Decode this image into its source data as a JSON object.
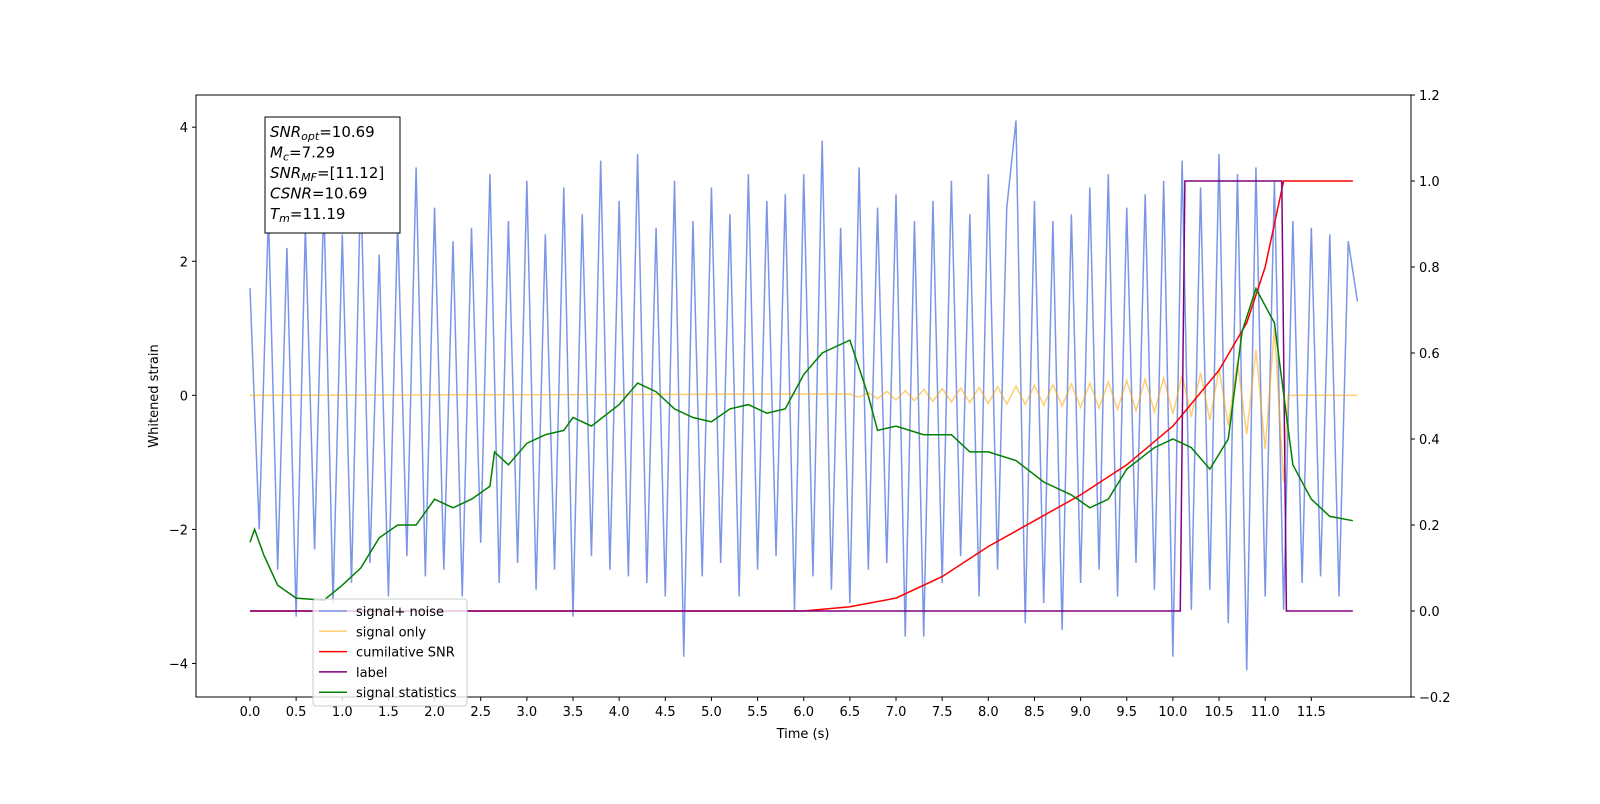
{
  "chart_data": {
    "type": "line",
    "ylabel": "Whitened strain",
    "xlabel": "Time (s)",
    "xlim": [
      -0.585,
      12.58
    ],
    "ylim": [
      -4.5,
      4.48
    ],
    "y2lim": [
      -0.2,
      1.2
    ],
    "xticks": [
      {
        "value": 0,
        "label": "0.0"
      },
      0.5,
      {
        "value": 1,
        "label": "1.0"
      },
      1.5,
      {
        "value": 2,
        "label": "2.0"
      },
      2.5,
      {
        "value": 3,
        "label": "3.0"
      },
      3.5,
      {
        "value": 4,
        "label": "4.0"
      },
      4.5,
      {
        "value": 5,
        "label": "5.0"
      },
      5.5,
      {
        "value": 6,
        "label": "6.0"
      },
      6.5,
      {
        "value": 7,
        "label": "7.0"
      },
      7.5,
      {
        "value": 8,
        "label": "8.0"
      },
      8.5,
      {
        "value": 9,
        "label": "9.0"
      },
      9.5,
      {
        "value": 10,
        "label": "10.0"
      },
      10.5,
      {
        "value": 11,
        "label": "11.0"
      },
      11.5
    ],
    "yticks": [
      {
        "value": -4,
        "label": "−4"
      },
      {
        "value": -2,
        "label": "−2"
      },
      0,
      2,
      4
    ],
    "y2ticks": [
      {
        "value": -0.2,
        "label": "−0.2"
      },
      {
        "value": 0,
        "label": "0.0"
      },
      0.2,
      0.4,
      0.6,
      0.8,
      {
        "value": 1,
        "label": "1.0"
      },
      1.2
    ],
    "annotation": [
      {
        "symbol": "SNR",
        "subscript": "opt",
        "text": "=10.69"
      },
      {
        "symbol": "M",
        "subscript": "c",
        "text": "=7.29"
      },
      {
        "symbol": "SNR",
        "subscript": "MF",
        "text": "=[11.12]"
      },
      {
        "symbol": "CSNR",
        "text": "=10.69"
      },
      {
        "symbol": "T",
        "subscript": "m",
        "text": "=11.19"
      }
    ],
    "legend": "lower center",
    "series": [
      {
        "name": "signal+ noise",
        "color": "#7b96e8",
        "axis": "y",
        "x": [
          0,
          0.1,
          0.2,
          0.3,
          0.4,
          0.5,
          0.6,
          0.7,
          0.8,
          0.9,
          1,
          1.1,
          1.2,
          1.3,
          1.4,
          1.5,
          1.6,
          1.7,
          1.8,
          1.9,
          2,
          2.1,
          2.2,
          2.3,
          2.4,
          2.5,
          2.6,
          2.7,
          2.8,
          2.9,
          3,
          3.1,
          3.2,
          3.3,
          3.4,
          3.5,
          3.6,
          3.7,
          3.8,
          3.9,
          4,
          4.1,
          4.2,
          4.3,
          4.4,
          4.5,
          4.6,
          4.7,
          4.8,
          4.9,
          5,
          5.1,
          5.2,
          5.3,
          5.4,
          5.5,
          5.6,
          5.7,
          5.8,
          5.9,
          6,
          6.1,
          6.2,
          6.3,
          6.4,
          6.5,
          6.6,
          6.7,
          6.8,
          6.9,
          7,
          7.1,
          7.2,
          7.3,
          7.4,
          7.5,
          7.6,
          7.7,
          7.8,
          7.9,
          8,
          8.1,
          8.2,
          8.3,
          8.4,
          8.5,
          8.6,
          8.7,
          8.8,
          8.9,
          9,
          9.1,
          9.2,
          9.3,
          9.4,
          9.5,
          9.6,
          9.7,
          9.8,
          9.9,
          10,
          10.1,
          10.2,
          10.3,
          10.4,
          10.5,
          10.6,
          10.7,
          10.8,
          10.9,
          11,
          11.1,
          11.2,
          11.3,
          11.4,
          11.5,
          11.6,
          11.7,
          11.8,
          11.9,
          12
        ],
        "values": [
          1.6,
          -2.0,
          2.7,
          -2.6,
          2.2,
          -3.3,
          2.5,
          -2.3,
          2.9,
          -3.1,
          2.4,
          -2.8,
          3.2,
          -2.5,
          2.1,
          -3.0,
          2.6,
          -2.4,
          3.4,
          -2.7,
          2.8,
          -2.6,
          2.3,
          -3.0,
          2.5,
          -2.2,
          3.3,
          -2.8,
          2.6,
          -2.5,
          3.2,
          -2.9,
          2.4,
          -2.6,
          3.1,
          -3.3,
          2.7,
          -2.4,
          3.5,
          -2.6,
          2.9,
          -2.7,
          3.6,
          -2.8,
          2.5,
          -3.0,
          3.2,
          -3.9,
          2.6,
          -2.7,
          3.1,
          -2.5,
          2.7,
          -3.0,
          3.3,
          -2.6,
          2.9,
          -2.4,
          3.0,
          -3.2,
          3.3,
          -2.7,
          3.8,
          -2.9,
          2.5,
          -3.1,
          3.4,
          -2.6,
          2.8,
          -2.5,
          3.0,
          -3.6,
          2.6,
          -3.6,
          2.9,
          -2.8,
          3.2,
          -2.4,
          2.7,
          -3.0,
          3.3,
          -2.6,
          2.8,
          4.1,
          -3.4,
          2.9,
          -3.1,
          2.6,
          -3.5,
          2.7,
          -2.8,
          3.1,
          -2.6,
          3.3,
          -3.0,
          2.8,
          -2.5,
          3.0,
          -2.9,
          3.2,
          -3.9,
          3.5,
          -3.2,
          3.1,
          -2.9,
          3.6,
          -3.4,
          3.3,
          -4.1,
          3.4,
          -3.0,
          3.2,
          -3.2,
          2.6,
          -2.8,
          2.5,
          -2.7,
          2.4,
          -3.0,
          2.3,
          1.4
        ]
      },
      {
        "name": "signal only",
        "color": "#ffa500",
        "axis": "y",
        "x": [
          0,
          6.5,
          6.6,
          6.7,
          6.8,
          6.9,
          7,
          7.1,
          7.2,
          7.3,
          7.4,
          7.5,
          7.6,
          7.7,
          7.8,
          7.9,
          8,
          8.1,
          8.2,
          8.3,
          8.4,
          8.5,
          8.6,
          8.7,
          8.8,
          8.9,
          9,
          9.1,
          9.2,
          9.3,
          9.4,
          9.5,
          9.6,
          9.7,
          9.8,
          9.9,
          10,
          10.1,
          10.2,
          10.3,
          10.4,
          10.5,
          10.6,
          10.7,
          10.8,
          10.9,
          11,
          11.1,
          11.2,
          11.25,
          12
        ],
        "values": [
          0,
          0.02,
          -0.03,
          0.04,
          -0.05,
          0.06,
          -0.07,
          0.07,
          -0.08,
          0.09,
          -0.09,
          0.1,
          -0.1,
          0.11,
          -0.11,
          0.12,
          -0.12,
          0.13,
          -0.13,
          0.14,
          -0.14,
          0.15,
          -0.15,
          0.16,
          -0.16,
          0.17,
          -0.18,
          0.18,
          -0.19,
          0.2,
          -0.21,
          0.22,
          -0.23,
          0.24,
          -0.25,
          0.26,
          -0.28,
          0.3,
          -0.32,
          0.34,
          -0.37,
          0.4,
          -0.45,
          0.5,
          -0.58,
          0.68,
          -0.8,
          1.0,
          -1.3,
          0,
          0
        ]
      },
      {
        "name": "cumilative SNR",
        "color": "#ff0000",
        "axis": "y2",
        "x": [
          0,
          6,
          6.5,
          7,
          7.5,
          8,
          8.5,
          9,
          9.5,
          10,
          10.5,
          10.8,
          11,
          11.1,
          11.2,
          11.95
        ],
        "values": [
          0,
          0,
          0.01,
          0.03,
          0.08,
          0.15,
          0.21,
          0.27,
          0.34,
          0.43,
          0.56,
          0.67,
          0.8,
          0.9,
          1.0,
          1.0
        ]
      },
      {
        "name": "label",
        "color": "#800080",
        "axis": "y2",
        "x": [
          0,
          10.08,
          10.13,
          11.18,
          11.23,
          11.95
        ],
        "values": [
          0,
          0,
          1,
          1,
          0,
          0
        ]
      },
      {
        "name": "signal statistics",
        "color": "#008000",
        "axis": "y2",
        "x": [
          0,
          0.05,
          0.15,
          0.3,
          0.5,
          0.8,
          1,
          1.2,
          1.4,
          1.6,
          1.8,
          2,
          2.2,
          2.4,
          2.6,
          2.65,
          2.8,
          3,
          3.2,
          3.4,
          3.5,
          3.7,
          4,
          4.2,
          4.4,
          4.6,
          4.8,
          5,
          5.2,
          5.4,
          5.6,
          5.8,
          6,
          6.2,
          6.5,
          6.7,
          6.8,
          7,
          7.3,
          7.6,
          7.8,
          8,
          8.3,
          8.6,
          8.9,
          9.1,
          9.3,
          9.5,
          9.8,
          10,
          10.2,
          10.4,
          10.6,
          10.75,
          10.9,
          11.1,
          11.3,
          11.5,
          11.7,
          11.95
        ],
        "values": [
          0.16,
          0.19,
          0.13,
          0.06,
          0.03,
          0.025,
          0.06,
          0.1,
          0.17,
          0.2,
          0.2,
          0.26,
          0.24,
          0.26,
          0.29,
          0.37,
          0.34,
          0.39,
          0.41,
          0.42,
          0.45,
          0.43,
          0.48,
          0.53,
          0.51,
          0.47,
          0.45,
          0.44,
          0.47,
          0.48,
          0.46,
          0.47,
          0.55,
          0.6,
          0.63,
          0.5,
          0.42,
          0.43,
          0.41,
          0.41,
          0.37,
          0.37,
          0.35,
          0.3,
          0.27,
          0.24,
          0.26,
          0.33,
          0.38,
          0.4,
          0.38,
          0.33,
          0.4,
          0.65,
          0.75,
          0.67,
          0.34,
          0.26,
          0.22,
          0.21
        ]
      }
    ]
  }
}
